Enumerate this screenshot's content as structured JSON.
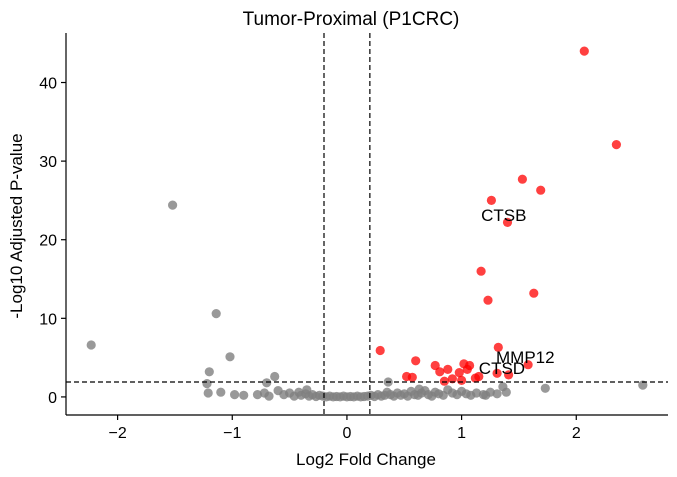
{
  "chart_data": {
    "type": "scatter",
    "title": "Tumor-Proximal (P1CRC)",
    "xlabel": "Log2 Fold Change",
    "ylabel": "-Log10 Adjusted P-value",
    "xlim": [
      -2.45,
      2.8
    ],
    "ylim": [
      -2.3,
      46.3
    ],
    "xticks": [
      -2,
      -1,
      0,
      1,
      2
    ],
    "yticks": [
      0,
      10,
      20,
      30,
      40
    ],
    "thresholds": {
      "x": [
        -0.2,
        0.2
      ],
      "y": 1.9
    },
    "grid": false,
    "legend": "none",
    "colors": {
      "significant": "#ff0000",
      "not_significant": "#808080"
    },
    "significant": [
      [
        2.07,
        44.0
      ],
      [
        2.35,
        32.1
      ],
      [
        1.53,
        27.7
      ],
      [
        1.69,
        26.3
      ],
      [
        1.26,
        25.0
      ],
      [
        1.4,
        22.2
      ],
      [
        1.17,
        16.0
      ],
      [
        1.23,
        12.3
      ],
      [
        1.63,
        13.2
      ],
      [
        0.29,
        5.9
      ],
      [
        1.32,
        6.3
      ],
      [
        1.58,
        4.1
      ],
      [
        0.6,
        4.6
      ],
      [
        0.77,
        4.0
      ],
      [
        0.88,
        3.5
      ],
      [
        1.02,
        4.2
      ],
      [
        1.07,
        4.0
      ],
      [
        1.31,
        3.0
      ],
      [
        1.41,
        2.8
      ],
      [
        0.52,
        2.6
      ],
      [
        0.57,
        2.5
      ],
      [
        0.81,
        3.2
      ],
      [
        0.98,
        3.1
      ],
      [
        1.05,
        3.5
      ],
      [
        0.92,
        2.3
      ],
      [
        1.15,
        2.6
      ],
      [
        1.12,
        2.4
      ],
      [
        1.0,
        2.1
      ],
      [
        0.85,
        2.0
      ]
    ],
    "not_significant": [
      [
        -2.23,
        6.6
      ],
      [
        -1.52,
        24.4
      ],
      [
        -1.14,
        10.6
      ],
      [
        -1.02,
        5.1
      ],
      [
        -1.2,
        3.2
      ],
      [
        -1.22,
        1.7
      ],
      [
        -0.63,
        2.6
      ],
      [
        -0.7,
        1.8
      ],
      [
        -1.21,
        0.5
      ],
      [
        -1.1,
        0.6
      ],
      [
        -0.98,
        0.3
      ],
      [
        -0.9,
        0.2
      ],
      [
        -0.78,
        0.3
      ],
      [
        -0.72,
        0.5
      ],
      [
        -0.68,
        0.1
      ],
      [
        -0.6,
        0.8
      ],
      [
        -0.55,
        0.3
      ],
      [
        -0.5,
        0.5
      ],
      [
        -0.46,
        0.1
      ],
      [
        -0.42,
        0.6
      ],
      [
        -0.4,
        0.2
      ],
      [
        -0.36,
        0.4
      ],
      [
        -0.33,
        0.1
      ],
      [
        -0.3,
        0.3
      ],
      [
        -0.27,
        0.05
      ],
      [
        -0.24,
        0.2
      ],
      [
        -0.21,
        0.1
      ],
      [
        -0.18,
        0.0
      ],
      [
        -0.15,
        0.1
      ],
      [
        -0.12,
        0.0
      ],
      [
        -0.09,
        0.05
      ],
      [
        -0.06,
        0.0
      ],
      [
        -0.03,
        0.1
      ],
      [
        0.0,
        0.0
      ],
      [
        0.03,
        0.05
      ],
      [
        0.06,
        0.0
      ],
      [
        0.09,
        0.1
      ],
      [
        0.12,
        0.0
      ],
      [
        0.15,
        0.05
      ],
      [
        0.18,
        0.1
      ],
      [
        0.21,
        0.2
      ],
      [
        0.24,
        0.05
      ],
      [
        0.27,
        0.3
      ],
      [
        0.3,
        0.1
      ],
      [
        0.33,
        0.2
      ],
      [
        0.35,
        0.6
      ],
      [
        0.38,
        0.3
      ],
      [
        0.41,
        0.1
      ],
      [
        0.44,
        0.5
      ],
      [
        0.47,
        0.2
      ],
      [
        0.5,
        0.4
      ],
      [
        0.53,
        0.1
      ],
      [
        0.56,
        0.7
      ],
      [
        0.59,
        0.3
      ],
      [
        0.62,
        0.2
      ],
      [
        0.65,
        0.5
      ],
      [
        0.68,
        0.8
      ],
      [
        0.71,
        0.3
      ],
      [
        0.74,
        0.1
      ],
      [
        0.77,
        0.6
      ],
      [
        0.8,
        0.4
      ],
      [
        0.84,
        0.2
      ],
      [
        0.88,
        0.9
      ],
      [
        0.92,
        0.5
      ],
      [
        0.96,
        0.3
      ],
      [
        1.0,
        0.7
      ],
      [
        1.04,
        0.4
      ],
      [
        1.08,
        0.2
      ],
      [
        1.13,
        0.5
      ],
      [
        1.19,
        0.3
      ],
      [
        1.25,
        0.6
      ],
      [
        1.31,
        0.4
      ],
      [
        1.39,
        0.6
      ],
      [
        1.36,
        1.3
      ],
      [
        1.73,
        1.1
      ],
      [
        2.58,
        1.5
      ],
      [
        0.36,
        1.9
      ],
      [
        -0.35,
        0.9
      ],
      [
        0.63,
        1.0
      ],
      [
        1.21,
        0.2
      ]
    ],
    "annotations": [
      {
        "text": "CTSB",
        "x": 1.17,
        "y": 22.4
      },
      {
        "text": "MMP12",
        "x": 1.3,
        "y": 4.3
      },
      {
        "text": "CTSD",
        "x": 1.15,
        "y": 2.9
      }
    ]
  }
}
